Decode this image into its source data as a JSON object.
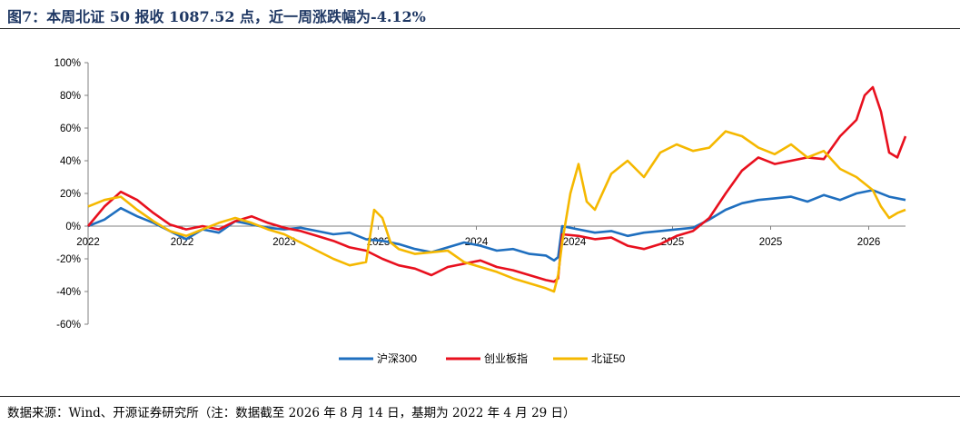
{
  "title": "图7：本周北证 50 报收 1087.52 点，近一周涨跌幅为-4.12%",
  "source": "数据来源：Wind、开源证券研究所（注：数据截至 2026 年 8 月 14 日，基期为 2022 年 4 月 29 日）",
  "chart_data": {
    "type": "line",
    "ylim": [
      -60,
      100
    ],
    "yticks": [
      "100%",
      "80%",
      "60%",
      "40%",
      "20%",
      "0%",
      "-20%",
      "-40%",
      "-60%"
    ],
    "xlim": [
      0,
      1
    ],
    "xticks": [
      {
        "label": "2022",
        "x": 0.0
      },
      {
        "label": "2022",
        "x": 0.115
      },
      {
        "label": "2023",
        "x": 0.24
      },
      {
        "label": "2023",
        "x": 0.355
      },
      {
        "label": "2024",
        "x": 0.475
      },
      {
        "label": "2024",
        "x": 0.595
      },
      {
        "label": "2025",
        "x": 0.715
      },
      {
        "label": "2025",
        "x": 0.835
      },
      {
        "label": "2026",
        "x": 0.955
      }
    ],
    "legend_position": "bottom",
    "grid": false,
    "series": [
      {
        "name": "沪深300",
        "color": "#1f6fbf",
        "points": [
          [
            0.0,
            0
          ],
          [
            0.02,
            4
          ],
          [
            0.04,
            11
          ],
          [
            0.06,
            6
          ],
          [
            0.08,
            2
          ],
          [
            0.1,
            -3
          ],
          [
            0.12,
            -8
          ],
          [
            0.14,
            -2
          ],
          [
            0.16,
            -4
          ],
          [
            0.18,
            3
          ],
          [
            0.2,
            1
          ],
          [
            0.22,
            -1
          ],
          [
            0.24,
            -2
          ],
          [
            0.26,
            -1
          ],
          [
            0.28,
            -3
          ],
          [
            0.3,
            -5
          ],
          [
            0.32,
            -4
          ],
          [
            0.34,
            -8
          ],
          [
            0.36,
            -9
          ],
          [
            0.38,
            -11
          ],
          [
            0.4,
            -14
          ],
          [
            0.42,
            -16
          ],
          [
            0.44,
            -13
          ],
          [
            0.46,
            -10
          ],
          [
            0.48,
            -12
          ],
          [
            0.5,
            -15
          ],
          [
            0.52,
            -14
          ],
          [
            0.54,
            -17
          ],
          [
            0.56,
            -18
          ],
          [
            0.57,
            -21
          ],
          [
            0.575,
            -19
          ],
          [
            0.58,
            0
          ],
          [
            0.6,
            -2
          ],
          [
            0.62,
            -4
          ],
          [
            0.64,
            -3
          ],
          [
            0.66,
            -6
          ],
          [
            0.68,
            -4
          ],
          [
            0.7,
            -3
          ],
          [
            0.72,
            -2
          ],
          [
            0.74,
            -1
          ],
          [
            0.76,
            4
          ],
          [
            0.78,
            10
          ],
          [
            0.8,
            14
          ],
          [
            0.82,
            16
          ],
          [
            0.84,
            17
          ],
          [
            0.86,
            18
          ],
          [
            0.88,
            15
          ],
          [
            0.9,
            19
          ],
          [
            0.92,
            16
          ],
          [
            0.94,
            20
          ],
          [
            0.96,
            22
          ],
          [
            0.98,
            18
          ],
          [
            1.0,
            16
          ]
        ]
      },
      {
        "name": "创业板指",
        "color": "#e8101e",
        "points": [
          [
            0.0,
            0
          ],
          [
            0.02,
            12
          ],
          [
            0.04,
            21
          ],
          [
            0.06,
            16
          ],
          [
            0.08,
            8
          ],
          [
            0.1,
            1
          ],
          [
            0.12,
            -2
          ],
          [
            0.14,
            0
          ],
          [
            0.16,
            -2
          ],
          [
            0.18,
            3
          ],
          [
            0.2,
            6
          ],
          [
            0.22,
            2
          ],
          [
            0.24,
            -1
          ],
          [
            0.26,
            -3
          ],
          [
            0.28,
            -6
          ],
          [
            0.3,
            -9
          ],
          [
            0.32,
            -13
          ],
          [
            0.34,
            -15
          ],
          [
            0.36,
            -20
          ],
          [
            0.38,
            -24
          ],
          [
            0.4,
            -26
          ],
          [
            0.42,
            -30
          ],
          [
            0.44,
            -25
          ],
          [
            0.46,
            -23
          ],
          [
            0.48,
            -21
          ],
          [
            0.5,
            -25
          ],
          [
            0.52,
            -27
          ],
          [
            0.54,
            -30
          ],
          [
            0.56,
            -33
          ],
          [
            0.57,
            -34
          ],
          [
            0.575,
            -32
          ],
          [
            0.58,
            -5
          ],
          [
            0.6,
            -6
          ],
          [
            0.62,
            -8
          ],
          [
            0.64,
            -7
          ],
          [
            0.66,
            -12
          ],
          [
            0.68,
            -14
          ],
          [
            0.7,
            -11
          ],
          [
            0.72,
            -6
          ],
          [
            0.74,
            -3
          ],
          [
            0.76,
            5
          ],
          [
            0.78,
            20
          ],
          [
            0.8,
            34
          ],
          [
            0.82,
            42
          ],
          [
            0.84,
            38
          ],
          [
            0.86,
            40
          ],
          [
            0.88,
            42
          ],
          [
            0.9,
            41
          ],
          [
            0.92,
            55
          ],
          [
            0.94,
            65
          ],
          [
            0.95,
            80
          ],
          [
            0.96,
            85
          ],
          [
            0.97,
            70
          ],
          [
            0.98,
            45
          ],
          [
            0.99,
            42
          ],
          [
            1.0,
            55
          ]
        ]
      },
      {
        "name": "北证50",
        "color": "#f5b800",
        "points": [
          [
            0.0,
            12
          ],
          [
            0.02,
            16
          ],
          [
            0.04,
            18
          ],
          [
            0.06,
            10
          ],
          [
            0.08,
            3
          ],
          [
            0.1,
            -3
          ],
          [
            0.12,
            -6
          ],
          [
            0.14,
            -2
          ],
          [
            0.16,
            2
          ],
          [
            0.18,
            5
          ],
          [
            0.2,
            2
          ],
          [
            0.22,
            -2
          ],
          [
            0.24,
            -5
          ],
          [
            0.26,
            -10
          ],
          [
            0.28,
            -15
          ],
          [
            0.3,
            -20
          ],
          [
            0.32,
            -24
          ],
          [
            0.34,
            -22
          ],
          [
            0.35,
            10
          ],
          [
            0.36,
            5
          ],
          [
            0.37,
            -10
          ],
          [
            0.38,
            -14
          ],
          [
            0.4,
            -17
          ],
          [
            0.42,
            -16
          ],
          [
            0.44,
            -15
          ],
          [
            0.46,
            -22
          ],
          [
            0.48,
            -25
          ],
          [
            0.5,
            -28
          ],
          [
            0.52,
            -32
          ],
          [
            0.54,
            -35
          ],
          [
            0.56,
            -38
          ],
          [
            0.57,
            -40
          ],
          [
            0.575,
            -30
          ],
          [
            0.58,
            -10
          ],
          [
            0.59,
            20
          ],
          [
            0.6,
            38
          ],
          [
            0.61,
            15
          ],
          [
            0.62,
            10
          ],
          [
            0.64,
            32
          ],
          [
            0.66,
            40
          ],
          [
            0.68,
            30
          ],
          [
            0.7,
            45
          ],
          [
            0.72,
            50
          ],
          [
            0.74,
            46
          ],
          [
            0.76,
            48
          ],
          [
            0.78,
            58
          ],
          [
            0.8,
            55
          ],
          [
            0.82,
            48
          ],
          [
            0.84,
            44
          ],
          [
            0.86,
            50
          ],
          [
            0.88,
            42
          ],
          [
            0.9,
            46
          ],
          [
            0.92,
            35
          ],
          [
            0.94,
            30
          ],
          [
            0.96,
            22
          ],
          [
            0.97,
            12
          ],
          [
            0.98,
            5
          ],
          [
            0.99,
            8
          ],
          [
            1.0,
            10
          ]
        ]
      }
    ]
  }
}
